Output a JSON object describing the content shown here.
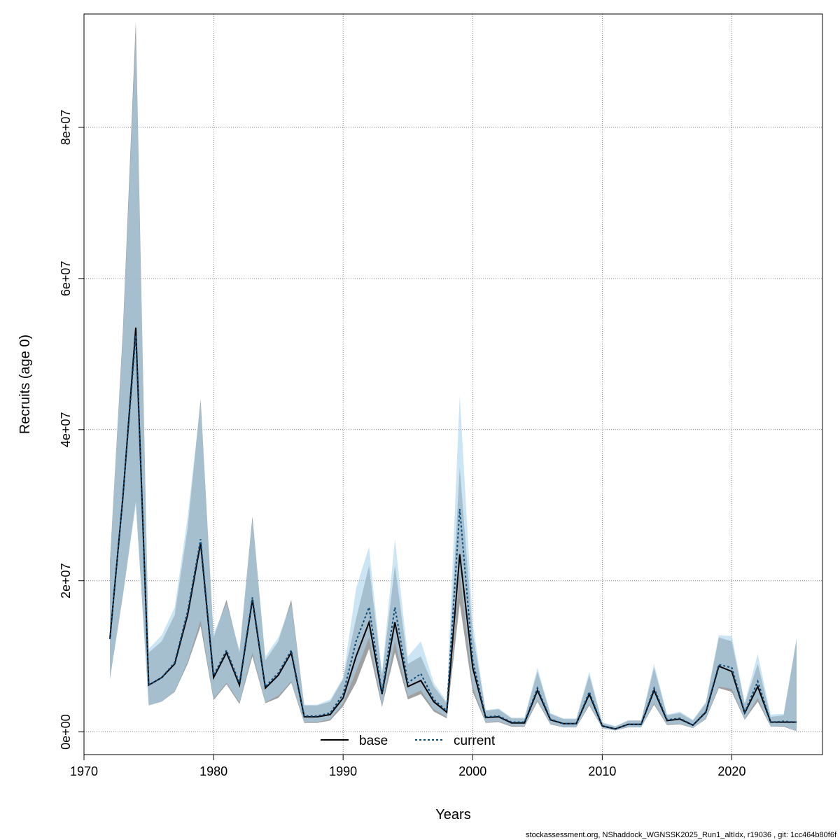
{
  "chart_data": {
    "type": "line",
    "xlabel": "Years",
    "ylabel": "Recruits (age 0)",
    "xlim": [
      1970,
      2027
    ],
    "ylim": [
      -3000000,
      95000000
    ],
    "x_ticks": [
      1970,
      1980,
      1990,
      2000,
      2010,
      2020
    ],
    "y_ticks": [
      0,
      20000000,
      40000000,
      60000000,
      80000000
    ],
    "x_tick_labels": [
      "1970",
      "1980",
      "1990",
      "2000",
      "2010",
      "2020"
    ],
    "y_tick_labels": [
      "0e+00",
      "2e+07",
      "4e+07",
      "6e+07",
      "8e+07"
    ],
    "grid": true,
    "legend_position": "bottom-center",
    "x": [
      1972,
      1973,
      1974,
      1975,
      1976,
      1977,
      1978,
      1979,
      1980,
      1981,
      1982,
      1983,
      1984,
      1985,
      1986,
      1987,
      1988,
      1989,
      1990,
      1991,
      1992,
      1993,
      1994,
      1995,
      1996,
      1997,
      1998,
      1999,
      2000,
      2001,
      2002,
      2003,
      2004,
      2005,
      2006,
      2007,
      2008,
      2009,
      2010,
      2011,
      2012,
      2013,
      2014,
      2015,
      2016,
      2017,
      2018,
      2019,
      2020,
      2021,
      2022,
      2023,
      2024,
      2025
    ],
    "series": [
      {
        "name": "base",
        "line_color": "#000000",
        "line_style": "solid",
        "band_color": "#8f8f8f",
        "values": [
          12300000,
          31000000,
          53500000,
          6200000,
          7200000,
          9000000,
          15500000,
          25000000,
          7200000,
          10500000,
          6200000,
          17500000,
          5800000,
          7500000,
          10500000,
          2000000,
          2000000,
          2300000,
          4500000,
          10000000,
          14500000,
          5000000,
          14500000,
          6000000,
          6800000,
          4000000,
          2600000,
          23500000,
          8500000,
          1900000,
          2000000,
          1200000,
          1200000,
          5500000,
          1600000,
          1100000,
          1100000,
          5000000,
          800000,
          400000,
          1000000,
          1000000,
          5500000,
          1500000,
          1700000,
          900000,
          2600000,
          8700000,
          8000000,
          2500000,
          6000000,
          1300000,
          1300000,
          1300000
        ],
        "lower": [
          7000000,
          18000000,
          30500000,
          3500000,
          4000000,
          5300000,
          9000000,
          14000000,
          4200000,
          6300000,
          3700000,
          10000000,
          3800000,
          4500000,
          6500000,
          1200000,
          1200000,
          1500000,
          3400000,
          6500000,
          11000000,
          3300000,
          10500000,
          4300000,
          5000000,
          2700000,
          1800000,
          17000000,
          5300000,
          1200000,
          1300000,
          700000,
          700000,
          4000000,
          1000000,
          600000,
          600000,
          3500000,
          500000,
          200000,
          600000,
          600000,
          3600000,
          900000,
          1000000,
          500000,
          1700000,
          5800000,
          5300000,
          1600000,
          4000000,
          700000,
          700000,
          100000
        ],
        "upper": [
          22500000,
          53000000,
          94000000,
          10500000,
          12000000,
          15500000,
          27000000,
          44000000,
          12500000,
          17500000,
          10500000,
          28500000,
          9500000,
          12000000,
          17500000,
          3500000,
          3500000,
          4000000,
          7000000,
          15000000,
          22000000,
          7500000,
          22000000,
          9000000,
          10000000,
          6000000,
          3800000,
          35000000,
          13000000,
          2800000,
          3000000,
          1800000,
          1800000,
          8000000,
          2400000,
          1700000,
          1700000,
          7500000,
          1200000,
          700000,
          1500000,
          1500000,
          8500000,
          2200000,
          2500000,
          1500000,
          3800000,
          12500000,
          12000000,
          3700000,
          9000000,
          2000000,
          2200000,
          12300000
        ]
      },
      {
        "name": "current",
        "line_color": "#0a4a7a",
        "line_style": "dotted",
        "band_color": "#a9d3ee",
        "values": [
          12300000,
          31000000,
          52500000,
          6200000,
          7200000,
          9200000,
          16000000,
          25500000,
          7500000,
          10800000,
          6500000,
          17800000,
          6000000,
          7800000,
          10800000,
          2100000,
          2100000,
          2500000,
          5000000,
          12000000,
          16500000,
          5200000,
          16500000,
          6500000,
          7700000,
          4300000,
          2800000,
          29500000,
          9500000,
          2000000,
          2100000,
          1300000,
          1300000,
          5800000,
          1700000,
          1100000,
          1100000,
          5300000,
          800000,
          400000,
          1000000,
          1000000,
          5800000,
          1600000,
          1800000,
          900000,
          2700000,
          8900000,
          8500000,
          2600000,
          6700000,
          1300000,
          1400000,
          1300000
        ],
        "lower": [
          7000000,
          18000000,
          30000000,
          3500000,
          4000000,
          5400000,
          9300000,
          14800000,
          4400000,
          6500000,
          3900000,
          10500000,
          3900000,
          4800000,
          6700000,
          1300000,
          1300000,
          1700000,
          3800000,
          8000000,
          12500000,
          3500000,
          12000000,
          4700000,
          5500000,
          3000000,
          2000000,
          21000000,
          6000000,
          1300000,
          1400000,
          800000,
          800000,
          4200000,
          1100000,
          600000,
          600000,
          3700000,
          500000,
          200000,
          600000,
          600000,
          3800000,
          1000000,
          1100000,
          500000,
          1800000,
          6000000,
          5700000,
          1700000,
          4500000,
          700000,
          800000,
          100000
        ],
        "upper": [
          22500000,
          52000000,
          92000000,
          11000000,
          12800000,
          16500000,
          28500000,
          43500000,
          13000000,
          17000000,
          10800000,
          28000000,
          10000000,
          12500000,
          17000000,
          3600000,
          3600000,
          4300000,
          7200000,
          19000000,
          24500000,
          7800000,
          25500000,
          10000000,
          12000000,
          6500000,
          4000000,
          44500000,
          14500000,
          2900000,
          3100000,
          1900000,
          1900000,
          8500000,
          2500000,
          1800000,
          1800000,
          8000000,
          1300000,
          800000,
          1500000,
          1500000,
          9000000,
          2300000,
          2700000,
          1600000,
          4000000,
          12800000,
          12700000,
          3900000,
          10300000,
          2300000,
          2400000,
          12300000
        ]
      }
    ]
  },
  "credit": "stockassessment.org, NShaddock_WGNSSK2025_Run1_altIdx, r19036 , git: 1cc464b80f6f"
}
